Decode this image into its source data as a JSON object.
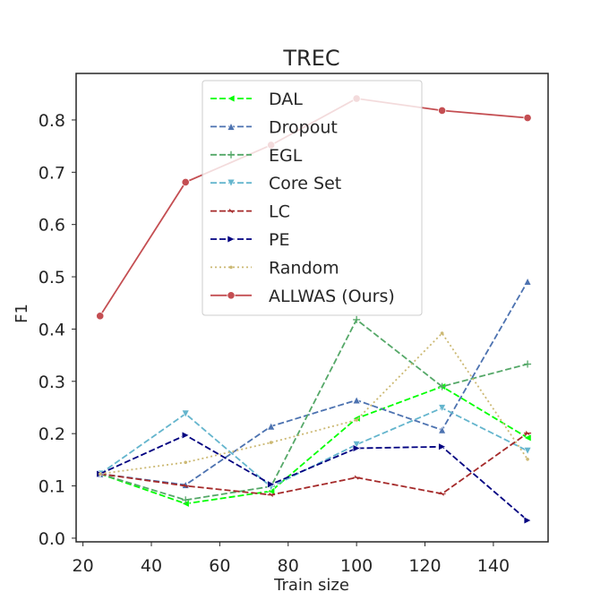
{
  "chart_data": {
    "type": "line",
    "title": "TREC",
    "xlabel": "Train size",
    "ylabel": "F1",
    "xlim": [
      18,
      156
    ],
    "ylim": [
      -0.007,
      0.889
    ],
    "xticks": [
      20,
      40,
      60,
      80,
      100,
      120,
      140
    ],
    "yticks": [
      0.0,
      0.1,
      0.2,
      0.3,
      0.4,
      0.5,
      0.6,
      0.7,
      0.8
    ],
    "ytick_labels": [
      "0.0",
      "0.1",
      "0.2",
      "0.3",
      "0.4",
      "0.5",
      "0.6",
      "0.7",
      "0.8"
    ],
    "grid": false,
    "legend_position": "upper-center",
    "x": [
      25,
      50,
      75,
      100,
      125,
      150
    ],
    "series": [
      {
        "name": "DAL",
        "color": "#00ff00",
        "dash": "dashed",
        "marker": "triangle-left",
        "values": [
          0.123,
          0.066,
          0.09,
          0.229,
          0.29,
          0.192
        ]
      },
      {
        "name": "Dropout",
        "color": "#4c72b0",
        "dash": "dashed",
        "marker": "triangle-up",
        "values": [
          0.123,
          0.102,
          0.214,
          0.264,
          0.207,
          0.491
        ]
      },
      {
        "name": "EGL",
        "color": "#55a868",
        "dash": "dashed",
        "marker": "plus",
        "values": [
          0.123,
          0.073,
          0.099,
          0.418,
          0.29,
          0.333
        ]
      },
      {
        "name": "Core Set",
        "color": "#64b5cd",
        "dash": "dashed",
        "marker": "triangle-down",
        "values": [
          0.123,
          0.238,
          0.098,
          0.179,
          0.249,
          0.167
        ]
      },
      {
        "name": "LC",
        "color": "#a52a2a",
        "dash": "dashed",
        "marker": "tri",
        "values": [
          0.123,
          0.1,
          0.083,
          0.116,
          0.085,
          0.201
        ]
      },
      {
        "name": "PE",
        "color": "#000080",
        "dash": "dashed",
        "marker": "triangle-right",
        "values": [
          0.123,
          0.197,
          0.103,
          0.172,
          0.175,
          0.034
        ]
      },
      {
        "name": "Random",
        "color": "#ccb974",
        "dash": "dotted",
        "marker": "point",
        "values": [
          0.123,
          0.145,
          0.183,
          0.226,
          0.392,
          0.151
        ]
      },
      {
        "name": "ALLWAS (Ours)",
        "color": "#c44e52",
        "dash": "solid",
        "marker": "circle",
        "values": [
          0.425,
          0.681,
          0.752,
          0.841,
          0.818,
          0.804
        ]
      }
    ]
  }
}
